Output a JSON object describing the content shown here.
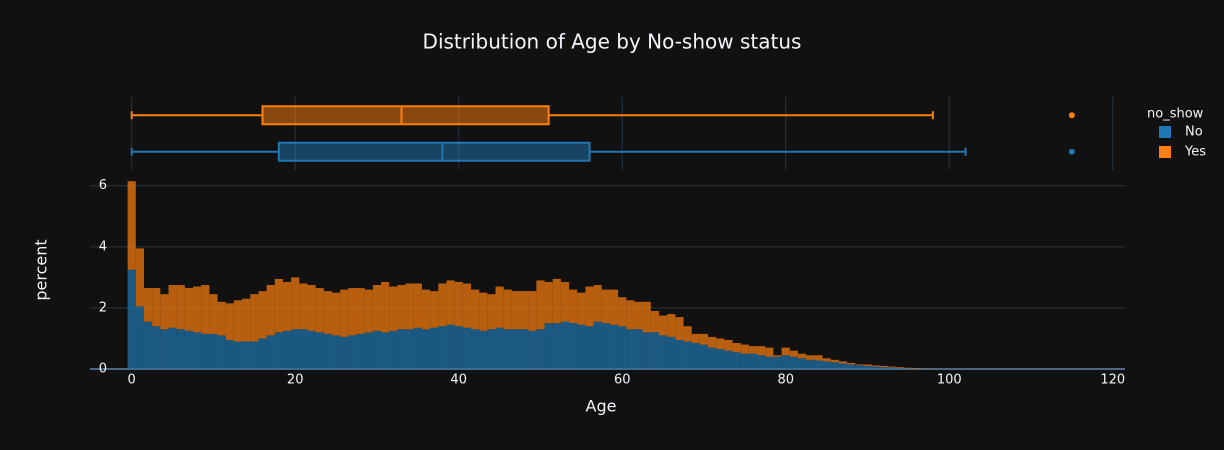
{
  "chart_data": {
    "type": "histogram",
    "marginal": "box",
    "title": "Distribution of Age by No-show status",
    "x_label": "Age",
    "y_label": "percent",
    "legend_title": "no_show",
    "legend": "right",
    "bins": [
      -0.5,
      0.5,
      1.5,
      2.5,
      3.5,
      4.5,
      5.5,
      6.5,
      7.5,
      8.5,
      9.5,
      10.5,
      11.5,
      12.5,
      13.5,
      14.5,
      15.5,
      16.5,
      17.5,
      18.5,
      19.5,
      20.5,
      21.5,
      22.5,
      23.5,
      24.5,
      25.5,
      26.5,
      27.5,
      28.5,
      29.5,
      30.5,
      31.5,
      32.5,
      33.5,
      34.5,
      35.5,
      36.5,
      37.5,
      38.5,
      39.5,
      40.5,
      41.5,
      42.5,
      43.5,
      44.5,
      45.5,
      46.5,
      47.5,
      48.5,
      49.5,
      50.5,
      51.5,
      52.5,
      53.5,
      54.5,
      55.5,
      56.5,
      57.5,
      58.5,
      59.5,
      60.5,
      61.5,
      62.5,
      63.5,
      64.5,
      65.5,
      66.5,
      67.5,
      68.5,
      69.5,
      70.5,
      71.5,
      72.5,
      73.5,
      74.5,
      75.5,
      76.5,
      77.5,
      78.5,
      79.5,
      80.5,
      81.5,
      82.5,
      83.5,
      84.5,
      85.5,
      86.5,
      87.5,
      88.5,
      89.5,
      90.5,
      91.5,
      92.5,
      93.5,
      94.5,
      95.5,
      96.5,
      97.5,
      98.5,
      99.5
    ],
    "series": [
      {
        "name": "No",
        "color": "#1f77b4",
        "values": [
          3.25,
          2.05,
          1.55,
          1.4,
          1.3,
          1.35,
          1.3,
          1.25,
          1.2,
          1.15,
          1.15,
          1.1,
          0.95,
          0.9,
          0.9,
          0.9,
          1.0,
          1.1,
          1.2,
          1.25,
          1.3,
          1.3,
          1.25,
          1.2,
          1.15,
          1.1,
          1.05,
          1.1,
          1.15,
          1.2,
          1.25,
          1.2,
          1.25,
          1.3,
          1.3,
          1.35,
          1.3,
          1.35,
          1.4,
          1.45,
          1.4,
          1.35,
          1.3,
          1.25,
          1.3,
          1.35,
          1.3,
          1.3,
          1.3,
          1.25,
          1.3,
          1.5,
          1.5,
          1.55,
          1.5,
          1.45,
          1.4,
          1.55,
          1.5,
          1.45,
          1.4,
          1.3,
          1.3,
          1.2,
          1.2,
          1.1,
          1.05,
          0.95,
          0.9,
          0.85,
          0.8,
          0.7,
          0.65,
          0.6,
          0.55,
          0.5,
          0.5,
          0.45,
          0.4,
          0.4,
          0.45,
          0.4,
          0.35,
          0.3,
          0.28,
          0.25,
          0.22,
          0.18,
          0.15,
          0.12,
          0.1,
          0.08,
          0.06,
          0.05,
          0.03,
          0.02,
          0.01,
          0.01,
          0.005,
          0.003
        ],
        "box": {
          "min": 0,
          "q1": 18,
          "median": 38,
          "q3": 56,
          "max": 102,
          "outliers": [
            115
          ]
        }
      },
      {
        "name": "Yes",
        "color": "#ff7f0e",
        "values": [
          2.9,
          1.9,
          1.1,
          1.25,
          1.15,
          1.4,
          1.45,
          1.4,
          1.5,
          1.6,
          1.3,
          1.1,
          1.2,
          1.35,
          1.4,
          1.55,
          1.55,
          1.65,
          1.75,
          1.6,
          1.7,
          1.5,
          1.5,
          1.45,
          1.4,
          1.4,
          1.55,
          1.55,
          1.5,
          1.4,
          1.5,
          1.65,
          1.45,
          1.45,
          1.5,
          1.45,
          1.3,
          1.2,
          1.4,
          1.45,
          1.45,
          1.45,
          1.3,
          1.25,
          1.15,
          1.35,
          1.3,
          1.25,
          1.25,
          1.3,
          1.6,
          1.35,
          1.45,
          1.3,
          1.1,
          1.05,
          1.3,
          1.2,
          1.1,
          1.15,
          0.95,
          0.95,
          0.9,
          1.0,
          0.7,
          0.65,
          0.75,
          0.75,
          0.5,
          0.3,
          0.35,
          0.35,
          0.35,
          0.35,
          0.3,
          0.3,
          0.25,
          0.3,
          0.3,
          0.05,
          0.25,
          0.2,
          0.15,
          0.15,
          0.17,
          0.1,
          0.08,
          0.07,
          0.05,
          0.03,
          0.05,
          0.04,
          0.04,
          0.03,
          0.03,
          0.02,
          0.02,
          0.01,
          0.005,
          0
        ],
        "box": {
          "min": 0,
          "q1": 16,
          "median": 33,
          "q3": 51,
          "max": 98,
          "outliers": [
            115
          ]
        }
      }
    ],
    "opacity": 0.7,
    "barmode": "stack",
    "xlim": [
      -5.1,
      121.5
    ],
    "xticks": [
      0,
      20,
      40,
      60,
      80,
      100,
      120
    ],
    "ylim": [
      0,
      6.45
    ],
    "yticks": [
      0,
      2,
      4,
      6
    ],
    "grid": true
  }
}
